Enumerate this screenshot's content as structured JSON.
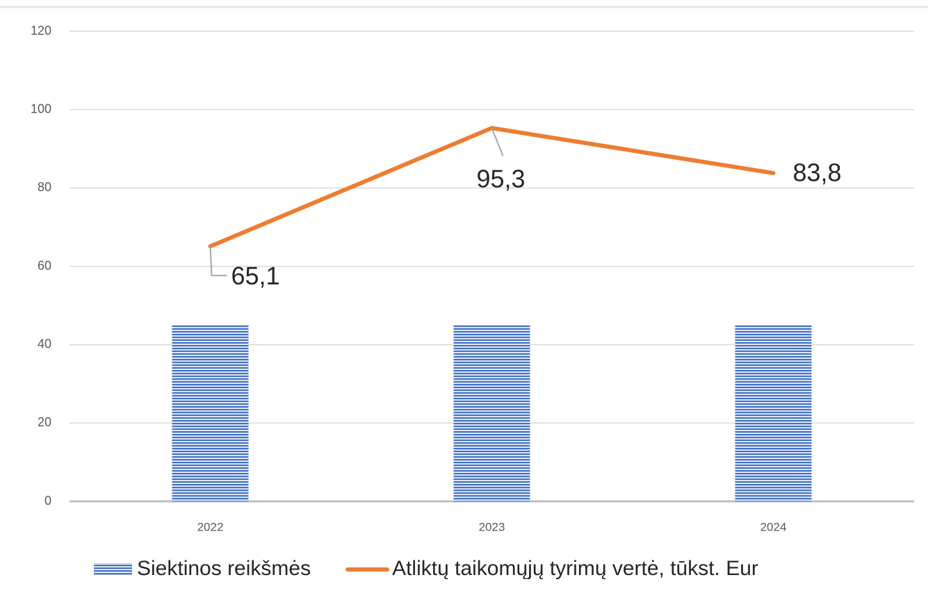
{
  "chart_data": {
    "type": "bar-line",
    "categories": [
      "2022",
      "2023",
      "2024"
    ],
    "series": [
      {
        "name": "Siektinos reikšmės",
        "type": "bar",
        "color": "#4472c4",
        "values": [
          45,
          45,
          45
        ]
      },
      {
        "name": "Atliktų taikomųjų tyrimų vertė, tūkst. Eur",
        "type": "line",
        "color": "#ed7d31",
        "values": [
          65.1,
          95.3,
          83.8
        ],
        "value_labels": [
          "65,1",
          "95,3",
          "83,8"
        ]
      }
    ],
    "ylim": [
      0,
      120
    ],
    "yticks": [
      0,
      20,
      40,
      60,
      80,
      100,
      120
    ],
    "grid": true,
    "legend": "bottom"
  }
}
